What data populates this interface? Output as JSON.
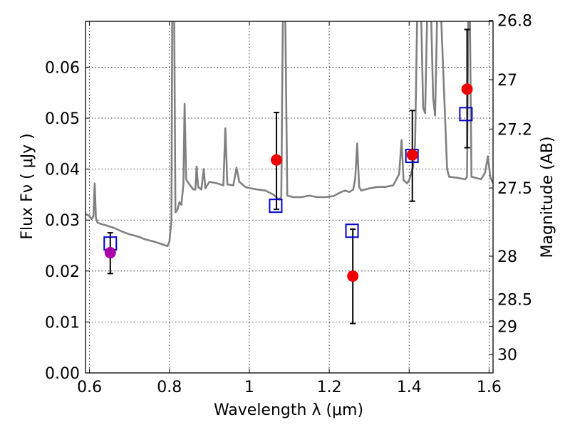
{
  "chart_data": {
    "type": "scatter",
    "title": "",
    "xlabel": "Wavelength  λ (μm)",
    "ylabel": "Flux  Fν  ( μJy )",
    "y2label": "Magnitude (AB)",
    "xlim": [
      0.59,
      1.61
    ],
    "ylim": [
      0.0,
      0.069
    ],
    "grid": true,
    "legend": "none",
    "x_ticks": [
      {
        "value": 0.6,
        "label": "0.6"
      },
      {
        "value": 0.8,
        "label": "0.8"
      },
      {
        "value": 1.0,
        "label": "1"
      },
      {
        "value": 1.2,
        "label": "1.2"
      },
      {
        "value": 1.4,
        "label": "1.4"
      },
      {
        "value": 1.6,
        "label": "1.6"
      }
    ],
    "y_ticks": [
      {
        "value": 0.0,
        "label": "0.00"
      },
      {
        "value": 0.01,
        "label": "0.01"
      },
      {
        "value": 0.02,
        "label": "0.02"
      },
      {
        "value": 0.03,
        "label": "0.03"
      },
      {
        "value": 0.04,
        "label": "0.04"
      },
      {
        "value": 0.05,
        "label": "0.05"
      },
      {
        "value": 0.06,
        "label": "0.06"
      }
    ],
    "y2_ticks": [
      {
        "mag": 26.8,
        "label": "26.8"
      },
      {
        "mag": 27.0,
        "label": "27"
      },
      {
        "mag": 27.2,
        "label": "27.2"
      },
      {
        "mag": 27.5,
        "label": "27.5"
      },
      {
        "mag": 28.0,
        "label": "28"
      },
      {
        "mag": 28.5,
        "label": "28.5"
      },
      {
        "mag": 29.0,
        "label": "29"
      },
      {
        "mag": 30.0,
        "label": "30"
      }
    ],
    "series": [
      {
        "kind": "line",
        "color": "#808080",
        "points": [
          [
            0.59,
            0.0312
          ],
          [
            0.6,
            0.0308
          ],
          [
            0.605,
            0.0302
          ],
          [
            0.61,
            0.0307
          ],
          [
            0.613,
            0.0372
          ],
          [
            0.616,
            0.0305
          ],
          [
            0.62,
            0.0295
          ],
          [
            0.63,
            0.0292
          ],
          [
            0.64,
            0.029
          ],
          [
            0.66,
            0.0285
          ],
          [
            0.68,
            0.0278
          ],
          [
            0.7,
            0.0272
          ],
          [
            0.72,
            0.0268
          ],
          [
            0.74,
            0.0262
          ],
          [
            0.76,
            0.0258
          ],
          [
            0.78,
            0.0253
          ],
          [
            0.79,
            0.025
          ],
          [
            0.795,
            0.0249
          ],
          [
            0.8,
            0.0258
          ],
          [
            0.805,
            0.03
          ],
          [
            0.807,
            0.07
          ],
          [
            0.812,
            0.07
          ],
          [
            0.815,
            0.0315
          ],
          [
            0.82,
            0.032
          ],
          [
            0.825,
            0.0335
          ],
          [
            0.83,
            0.033
          ],
          [
            0.835,
            0.037
          ],
          [
            0.838,
            0.0528
          ],
          [
            0.842,
            0.038
          ],
          [
            0.85,
            0.037
          ],
          [
            0.86,
            0.036
          ],
          [
            0.865,
            0.036
          ],
          [
            0.868,
            0.0405
          ],
          [
            0.872,
            0.0365
          ],
          [
            0.88,
            0.036
          ],
          [
            0.886,
            0.04
          ],
          [
            0.89,
            0.0362
          ],
          [
            0.9,
            0.0375
          ],
          [
            0.92,
            0.0372
          ],
          [
            0.935,
            0.0368
          ],
          [
            0.94,
            0.048
          ],
          [
            0.945,
            0.037
          ],
          [
            0.96,
            0.0368
          ],
          [
            0.968,
            0.0403
          ],
          [
            0.975,
            0.0375
          ],
          [
            0.99,
            0.0365
          ],
          [
            1.0,
            0.0363
          ],
          [
            1.02,
            0.036
          ],
          [
            1.04,
            0.0358
          ],
          [
            1.06,
            0.035
          ],
          [
            1.075,
            0.034
          ],
          [
            1.08,
            0.0345
          ],
          [
            1.084,
            0.07
          ],
          [
            1.09,
            0.07
          ],
          [
            1.095,
            0.0348
          ],
          [
            1.11,
            0.0345
          ],
          [
            1.13,
            0.0345
          ],
          [
            1.15,
            0.0348
          ],
          [
            1.17,
            0.0345
          ],
          [
            1.19,
            0.0345
          ],
          [
            1.21,
            0.0347
          ],
          [
            1.23,
            0.0355
          ],
          [
            1.24,
            0.0358
          ],
          [
            1.25,
            0.0355
          ],
          [
            1.26,
            0.036
          ],
          [
            1.265,
            0.038
          ],
          [
            1.27,
            0.045
          ],
          [
            1.275,
            0.0365
          ],
          [
            1.28,
            0.0358
          ],
          [
            1.3,
            0.0362
          ],
          [
            1.32,
            0.0365
          ],
          [
            1.34,
            0.0365
          ],
          [
            1.36,
            0.0368
          ],
          [
            1.375,
            0.039
          ],
          [
            1.381,
            0.0457
          ],
          [
            1.386,
            0.0378
          ],
          [
            1.395,
            0.0372
          ],
          [
            1.4,
            0.0378
          ],
          [
            1.41,
            0.0405
          ],
          [
            1.415,
            0.045
          ],
          [
            1.42,
            0.07
          ],
          [
            1.43,
            0.07
          ],
          [
            1.435,
            0.052
          ],
          [
            1.44,
            0.051
          ],
          [
            1.445,
            0.07
          ],
          [
            1.455,
            0.07
          ],
          [
            1.46,
            0.054
          ],
          [
            1.465,
            0.0505
          ],
          [
            1.47,
            0.07
          ],
          [
            1.48,
            0.07
          ],
          [
            1.49,
            0.05
          ],
          [
            1.495,
            0.04
          ],
          [
            1.5,
            0.0385
          ],
          [
            1.52,
            0.0383
          ],
          [
            1.54,
            0.038
          ],
          [
            1.545,
            0.0385
          ],
          [
            1.548,
            0.07
          ],
          [
            1.552,
            0.07
          ],
          [
            1.556,
            0.0385
          ],
          [
            1.58,
            0.038
          ],
          [
            1.59,
            0.0393
          ],
          [
            1.597,
            0.0425
          ],
          [
            1.603,
            0.0385
          ],
          [
            1.61,
            0.0372
          ]
        ]
      },
      {
        "kind": "points",
        "marker": "square",
        "color": "#0000cc",
        "points": [
          [
            0.652,
            0.0254
          ],
          [
            1.066,
            0.0328
          ],
          [
            1.257,
            0.0279
          ],
          [
            1.407,
            0.0426
          ],
          [
            1.542,
            0.0508
          ]
        ]
      },
      {
        "kind": "points",
        "marker": "circle",
        "color": "#ee0000",
        "points": [
          {
            "x": 1.068,
            "y": 0.0418,
            "ylo": 0.0321,
            "yhi": 0.0511
          },
          {
            "x": 1.259,
            "y": 0.019,
            "ylo": 0.0097,
            "yhi": 0.0282
          },
          {
            "x": 1.408,
            "y": 0.0428,
            "ylo": 0.0337,
            "yhi": 0.0515
          },
          {
            "x": 1.545,
            "y": 0.0557,
            "ylo": 0.0442,
            "yhi": 0.0674
          }
        ]
      },
      {
        "kind": "points",
        "marker": "circle",
        "color": "#aa00aa",
        "points": [
          {
            "x": 0.652,
            "y": 0.0236,
            "ylo": 0.0195,
            "yhi": 0.0275
          }
        ]
      }
    ]
  }
}
